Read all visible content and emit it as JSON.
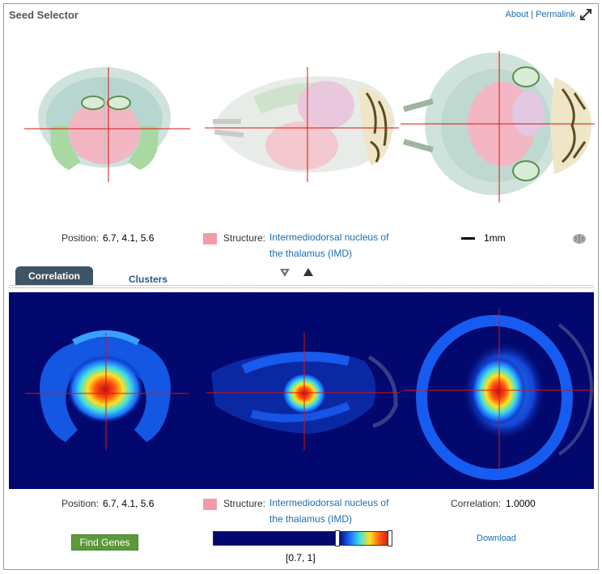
{
  "header": {
    "title": "Seed Selector",
    "about_label": "About",
    "separator": "|",
    "permalink_label": "Permalink"
  },
  "top_info": {
    "position_label": "Position:",
    "position_value": "6.7, 4.1, 5.6",
    "structure_label": "Structure:",
    "structure_name_line1": "Intermediodorsal nucleus of",
    "structure_name_line2": "the thalamus (IMD)",
    "scale_label": "1mm",
    "structure_color": "#f39aa7"
  },
  "tabs": [
    {
      "label": "Correlation",
      "active": true
    },
    {
      "label": "Clusters",
      "active": false
    }
  ],
  "bottom_info": {
    "position_label": "Position:",
    "position_value": "6.7, 4.1, 5.6",
    "structure_label": "Structure:",
    "structure_name_line1": "Intermediodorsal nucleus of",
    "structure_name_line2": "the thalamus (IMD)",
    "correlation_label": "Correlation:",
    "correlation_value": "1.0000"
  },
  "controls": {
    "find_genes_label": "Find Genes",
    "range_label": "[0.7, 1]",
    "range_min": 0.7,
    "range_max": 1.0,
    "download_label": "Download"
  },
  "colors": {
    "link": "#1a6fb3",
    "tab_active": "#3f5566",
    "heat_background": "#02086e",
    "button": "#5b9a3a",
    "crosshair": "#e01010"
  }
}
